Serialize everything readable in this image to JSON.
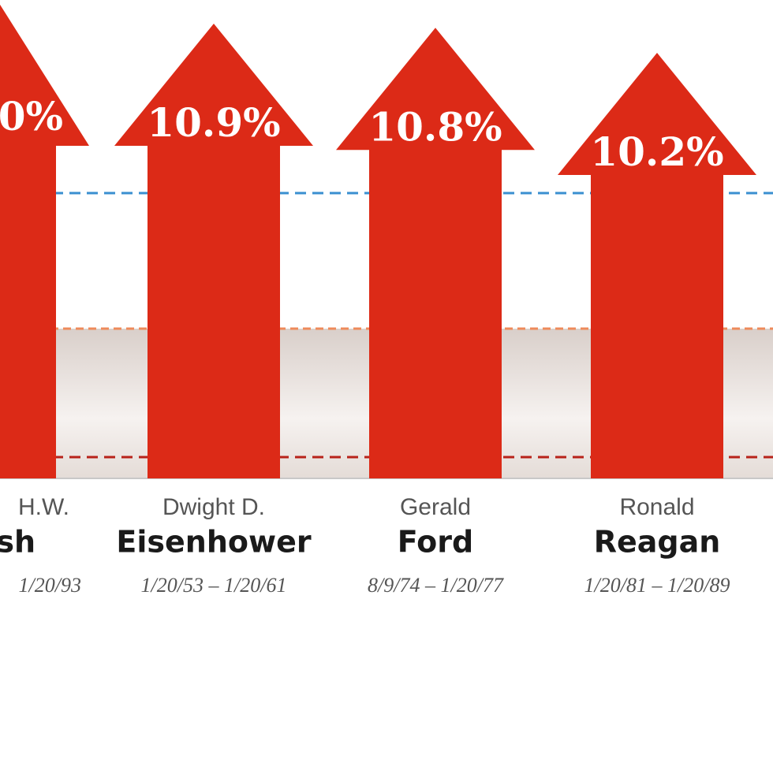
{
  "chart_data": {
    "type": "arrow-bar",
    "categories": [
      "Eisenhower",
      "Ford",
      "Reagan"
    ],
    "first_names": [
      "Dwight D.",
      "Gerald",
      "Ronald"
    ],
    "terms": [
      "1/20/53 – 1/20/61",
      "8/9/74 – 1/20/77",
      "1/20/81 – 1/20/89"
    ],
    "values": [
      10.9,
      10.8,
      10.2
    ],
    "value_labels": [
      "10.9%",
      "10.8%",
      "10.2%"
    ],
    "color": "#dc2a17",
    "ylim": [
      0,
      10.9
    ]
  },
  "cropped_column": {
    "value_label": "0%",
    "first_name": "H.W.",
    "last_name": "sh",
    "term": "1/20/93"
  }
}
